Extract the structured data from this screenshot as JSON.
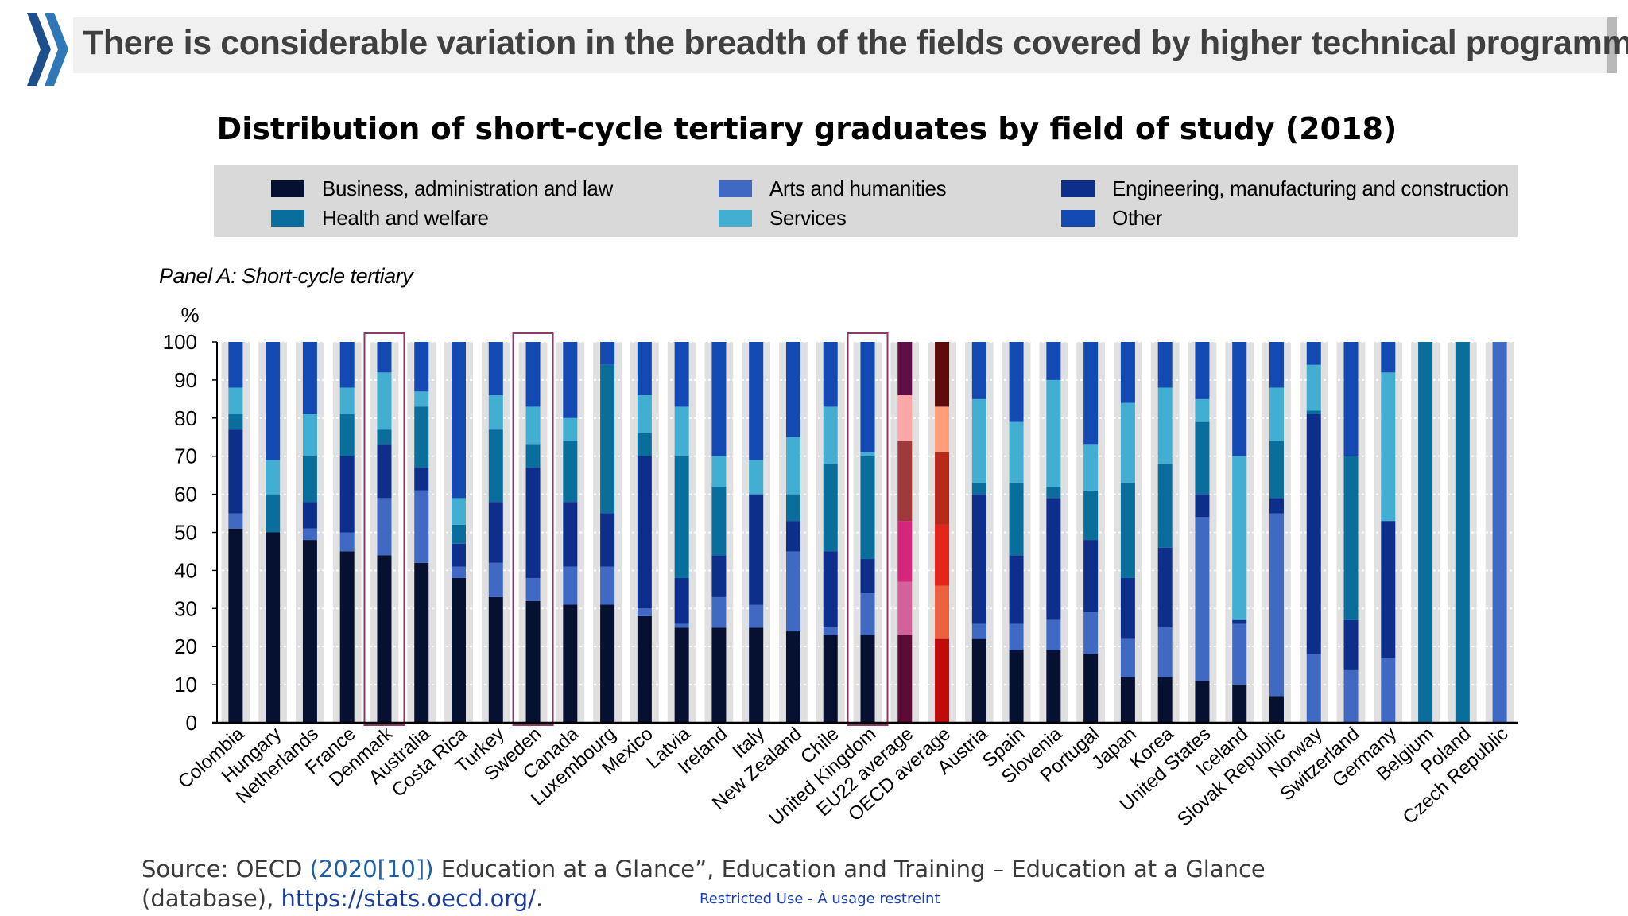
{
  "header": {
    "title": "There is considerable variation in the breadth of the fields covered by higher technical programmes"
  },
  "chart_data": {
    "type": "bar",
    "stacked": true,
    "title": "Distribution of short-cycle tertiary graduates by field of study (2018)",
    "panel_label": "Panel A: Short-cycle tertiary",
    "ylabel": "%",
    "ylim": [
      0,
      100
    ],
    "yticks": [
      "0",
      "10",
      "20",
      "30",
      "40",
      "50",
      "60",
      "70",
      "80",
      "90",
      "100"
    ],
    "grid": true,
    "legend_position": "top",
    "legend": [
      {
        "name": "Business, administration and law",
        "color": "#061132"
      },
      {
        "name": "Health and welfare",
        "color": "#0a6e9d"
      },
      {
        "name": "Arts and humanities",
        "color": "#3f69c2"
      },
      {
        "name": "Services",
        "color": "#41aed2"
      },
      {
        "name": "Engineering, manufacturing and construction",
        "color": "#0e2e8c"
      },
      {
        "name": "Other",
        "color": "#1349b2"
      }
    ],
    "stack_order": [
      "Business, administration and law",
      "Arts and humanities",
      "Engineering, manufacturing and construction",
      "Health and welfare",
      "Services",
      "Other"
    ],
    "average_colors": {
      "EU22 average": [
        "#5c0c34",
        "#d5619a",
        "#d6267c",
        "#a03a3a",
        "#ffa7a7",
        "#5e0f45"
      ],
      "OECD average": [
        "#c10b0b",
        "#ee6140",
        "#e5241c",
        "#b82a19",
        "#ff9f7a",
        "#5f0b0b"
      ]
    },
    "highlighted": [
      "Denmark",
      "Sweden",
      "United Kingdom"
    ],
    "categories": [
      "Colombia",
      "Hungary",
      "Netherlands",
      "France",
      "Denmark",
      "Australia",
      "Costa Rica",
      "Turkey",
      "Sweden",
      "Canada",
      "Luxembourg",
      "Mexico",
      "Latvia",
      "Ireland",
      "Italy",
      "New Zealand",
      "Chile",
      "United Kingdom",
      "EU22 average",
      "OECD average",
      "Austria",
      "Spain",
      "Slovenia",
      "Portugal",
      "Japan",
      "Korea",
      "United States",
      "Iceland",
      "Slovak Republic",
      "Norway",
      "Switzerland",
      "Germany",
      "Belgium",
      "Poland",
      "Czech Republic"
    ],
    "series": [
      {
        "name": "Business, administration and law",
        "values": [
          51,
          50,
          48,
          45,
          44,
          42,
          38,
          33,
          32,
          31,
          31,
          28,
          25,
          25,
          25,
          24,
          23,
          23,
          23,
          22,
          22,
          19,
          19,
          18,
          12,
          12,
          11,
          10,
          7,
          0,
          0,
          0,
          0,
          0,
          0
        ]
      },
      {
        "name": "Arts and humanities",
        "values": [
          4,
          0,
          3,
          5,
          15,
          19,
          3,
          9,
          6,
          10,
          10,
          2,
          1,
          8,
          6,
          21,
          2,
          11,
          14,
          14,
          4,
          7,
          8,
          11,
          10,
          13,
          43,
          16,
          48,
          18,
          14,
          17,
          0,
          0,
          100
        ]
      },
      {
        "name": "Engineering, manufacturing and construction",
        "values": [
          22,
          0,
          7,
          20,
          14,
          6,
          6,
          16,
          29,
          17,
          14,
          40,
          12,
          11,
          29,
          8,
          20,
          9,
          16,
          16,
          34,
          18,
          32,
          19,
          16,
          21,
          6,
          1,
          4,
          63,
          13,
          36,
          0,
          0,
          0
        ]
      },
      {
        "name": "Health and welfare",
        "values": [
          4,
          10,
          12,
          11,
          4,
          16,
          5,
          19,
          6,
          16,
          39,
          6,
          32,
          18,
          0,
          7,
          23,
          27,
          21,
          19,
          3,
          19,
          3,
          13,
          25,
          22,
          19,
          0,
          15,
          1,
          43,
          0,
          100,
          100,
          0
        ]
      },
      {
        "name": "Services",
        "values": [
          7,
          9,
          11,
          7,
          15,
          4,
          7,
          9,
          10,
          6,
          0,
          10,
          13,
          8,
          9,
          15,
          15,
          1,
          12,
          12,
          22,
          16,
          28,
          12,
          21,
          20,
          6,
          43,
          14,
          12,
          0,
          39,
          0,
          0,
          0
        ]
      },
      {
        "name": "Other",
        "values": [
          12,
          31,
          19,
          12,
          8,
          13,
          41,
          14,
          17,
          20,
          6,
          14,
          17,
          30,
          31,
          25,
          17,
          29,
          14,
          17,
          15,
          21,
          10,
          27,
          16,
          12,
          15,
          30,
          12,
          6,
          30,
          8,
          0,
          0,
          0
        ]
      }
    ]
  },
  "source": {
    "prefix": "Source: OECD ",
    "link": "(2020[10])",
    "middle": " Education at a Glance”, Education and Training – Education at a Glance (database), ",
    "url": "https://stats.oecd.org/",
    "suffix": "."
  },
  "footer": {
    "classification": "Restricted Use - À usage restreint"
  }
}
